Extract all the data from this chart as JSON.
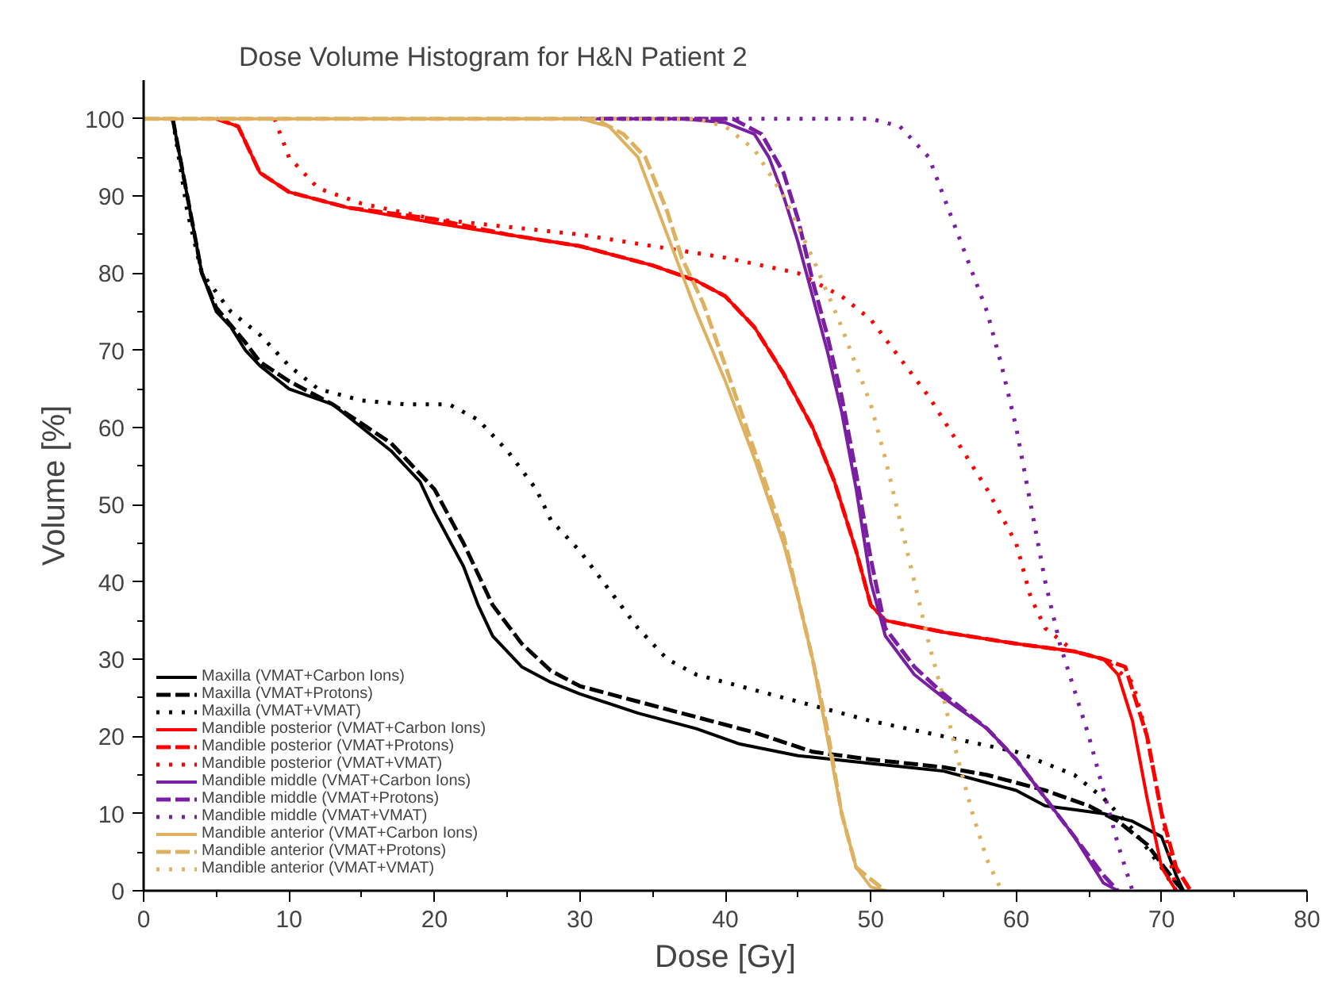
{
  "chart_data": {
    "type": "line",
    "title": "Dose Volume Histogram for  H&N Patient 2",
    "xlabel": "Dose [Gy]",
    "ylabel": "Volume [%]",
    "xlim": [
      0,
      80
    ],
    "ylim": [
      0,
      105
    ],
    "xticks": [
      0,
      10,
      20,
      30,
      40,
      50,
      60,
      70,
      80
    ],
    "yticks": [
      0,
      10,
      20,
      30,
      40,
      50,
      60,
      70,
      80,
      90,
      100
    ],
    "grid": false,
    "legend": "bottom left",
    "series": [
      {
        "name": "Maxilla (VMAT+Carbon Ions)",
        "color": "#000000",
        "line_style": "solid",
        "x": [
          2,
          3,
          4,
          5,
          6,
          7,
          8,
          10,
          13,
          15,
          17,
          19,
          20,
          22,
          23,
          24,
          26,
          28,
          30,
          34,
          38,
          41,
          45,
          50,
          55,
          58,
          60,
          62,
          64,
          66,
          68,
          70,
          71,
          71.5
        ],
        "values": [
          100,
          90,
          80,
          75,
          73,
          70,
          68,
          65,
          63,
          60,
          57,
          53,
          49,
          42,
          37,
          33,
          29,
          27,
          25.5,
          23,
          21,
          19,
          17.5,
          16.5,
          15.5,
          14,
          13,
          11,
          10.5,
          10,
          9,
          7,
          2,
          0
        ]
      },
      {
        "name": "Maxilla (VMAT+Protons)",
        "color": "#000000",
        "line_style": "dashed",
        "x": [
          2,
          3,
          4,
          5,
          7,
          8,
          10,
          13,
          15,
          17,
          20,
          22,
          24,
          26,
          28,
          30,
          34,
          38,
          42,
          46,
          50,
          55,
          58,
          62,
          65,
          67,
          69,
          71,
          71.5
        ],
        "values": [
          100,
          90,
          80,
          75.5,
          71,
          68.5,
          66,
          63,
          60.5,
          58,
          52,
          45,
          37,
          32,
          28.5,
          26.5,
          24.5,
          22.5,
          20.5,
          18,
          17,
          16,
          15,
          13,
          11,
          9,
          6,
          1,
          0
        ]
      },
      {
        "name": "Maxilla (VMAT+VMAT)",
        "color": "#000000",
        "line_style": "dotted",
        "x": [
          2,
          3,
          4,
          6,
          8,
          10,
          12,
          15,
          18,
          21,
          23,
          25,
          27,
          28,
          30,
          32,
          34,
          36,
          38,
          42,
          46,
          50,
          55,
          60,
          64,
          66,
          68,
          70,
          71
        ],
        "values": [
          100,
          88,
          80,
          75,
          72,
          68,
          65,
          63.5,
          63,
          63,
          61,
          57,
          52,
          48,
          44,
          39,
          34,
          30,
          28,
          26,
          24,
          22,
          20,
          18,
          15,
          12,
          8,
          3,
          0
        ]
      },
      {
        "name": "Mandible posterior (VMAT+Carbon Ions)",
        "color": "#ff0000",
        "line_style": "solid",
        "x": [
          5,
          6.5,
          7.5,
          8,
          10,
          14,
          20,
          25,
          30,
          35,
          38,
          40,
          42,
          44,
          46,
          47.5,
          49,
          50,
          51,
          55,
          60,
          64,
          66,
          67,
          68,
          69,
          70,
          71
        ],
        "values": [
          100,
          99,
          95,
          93,
          90.5,
          88.5,
          86.5,
          85,
          83.5,
          81,
          79,
          77,
          73,
          67,
          60,
          53,
          44,
          37,
          35,
          33.5,
          32,
          31,
          30,
          28,
          22,
          12,
          3,
          0
        ]
      },
      {
        "name": "Mandible posterior (VMAT+Protons)",
        "color": "#ff0000",
        "line_style": "dashed",
        "x": [
          5,
          6.5,
          7.5,
          8,
          10,
          14,
          20,
          25,
          30,
          35,
          38,
          40,
          42,
          44,
          46,
          47.5,
          49,
          50,
          51,
          55,
          60,
          64,
          66,
          67.5,
          69,
          70,
          71,
          72
        ],
        "values": [
          100,
          99,
          95,
          93,
          90.5,
          88.5,
          87,
          85,
          83.5,
          81,
          79,
          77,
          73,
          67,
          60,
          53,
          44,
          37,
          35,
          33.5,
          32,
          31,
          30,
          29,
          20,
          10,
          3,
          0
        ]
      },
      {
        "name": "Mandible posterior (VMAT+VMAT)",
        "color": "#ff0000",
        "line_style": "dotted",
        "x": [
          9,
          10,
          12,
          15,
          20,
          25,
          30,
          35,
          40,
          45,
          48,
          50,
          52,
          54,
          56,
          58,
          60,
          61,
          62,
          64,
          66,
          68,
          69,
          70,
          71
        ],
        "values": [
          100,
          95,
          91,
          89,
          87,
          86,
          85,
          83.5,
          82,
          80,
          77,
          74,
          69,
          64,
          58,
          52,
          45,
          38,
          34,
          31,
          30,
          27,
          20,
          10,
          0
        ]
      },
      {
        "name": "Mandible middle (VMAT+Carbon Ions)",
        "color": "#7b1fa2",
        "line_style": "solid",
        "x": [
          30,
          37,
          40,
          42,
          43,
          44,
          45,
          46,
          47,
          48,
          49,
          50,
          51,
          53,
          55,
          58,
          60,
          62,
          64,
          65,
          66,
          67
        ],
        "values": [
          100,
          100,
          99.5,
          98,
          95,
          90,
          84,
          77,
          70,
          62,
          52,
          40,
          33,
          28,
          25,
          21,
          17,
          12,
          7,
          4,
          1,
          0
        ]
      },
      {
        "name": "Mandible middle (VMAT+Protons)",
        "color": "#7b1fa2",
        "line_style": "dashed",
        "x": [
          30,
          38,
          40.5,
          42.5,
          44,
          45,
          46,
          47,
          48,
          49,
          50,
          51,
          53,
          55,
          58,
          60,
          62,
          64,
          66,
          67
        ],
        "values": [
          100,
          100,
          100,
          98,
          93,
          87,
          79,
          72,
          64,
          54,
          43,
          34,
          29,
          25.5,
          21,
          17,
          12,
          7,
          2,
          0
        ]
      },
      {
        "name": "Mandible middle (VMAT+VMAT)",
        "color": "#7b1fa2",
        "line_style": "dotted",
        "x": [
          32,
          50,
          52,
          54,
          55,
          56,
          57,
          58,
          59,
          60,
          61,
          62,
          63,
          64,
          65,
          66,
          67,
          68
        ],
        "values": [
          100,
          100,
          99,
          95,
          90,
          85,
          80,
          75,
          68,
          60,
          50,
          40,
          32,
          26,
          20,
          13,
          6,
          0
        ]
      },
      {
        "name": "Mandible anterior (VMAT+Carbon Ions)",
        "color": "#ddb15f",
        "line_style": "solid",
        "x": [
          0,
          30,
          32,
          34,
          35,
          36,
          37,
          38,
          40,
          42,
          44,
          45,
          46,
          47,
          48,
          49,
          50,
          51
        ],
        "values": [
          100,
          100,
          99,
          95,
          90,
          85,
          80,
          75,
          66,
          56,
          45,
          38,
          30,
          20,
          10,
          3,
          0.5,
          0
        ]
      },
      {
        "name": "Mandible anterior (VMAT+Protons)",
        "color": "#ddb15f",
        "line_style": "dashed",
        "x": [
          0,
          31,
          33,
          34.5,
          36,
          37,
          38.5,
          40,
          42,
          44,
          46,
          47,
          48,
          49,
          51
        ],
        "values": [
          100,
          100,
          98,
          95,
          88,
          82,
          76,
          68,
          57,
          46,
          30,
          21,
          10,
          3,
          0
        ]
      },
      {
        "name": "Mandible anterior (VMAT+VMAT)",
        "color": "#ddb15f",
        "line_style": "dotted",
        "x": [
          0,
          38,
          40,
          42,
          44,
          46,
          48,
          50,
          51,
          52,
          53,
          54,
          55,
          56,
          57,
          58,
          59
        ],
        "values": [
          100,
          100,
          99,
          96,
          90,
          82,
          73,
          63,
          56,
          48,
          40,
          32,
          25,
          17,
          10,
          4,
          0
        ]
      }
    ]
  }
}
